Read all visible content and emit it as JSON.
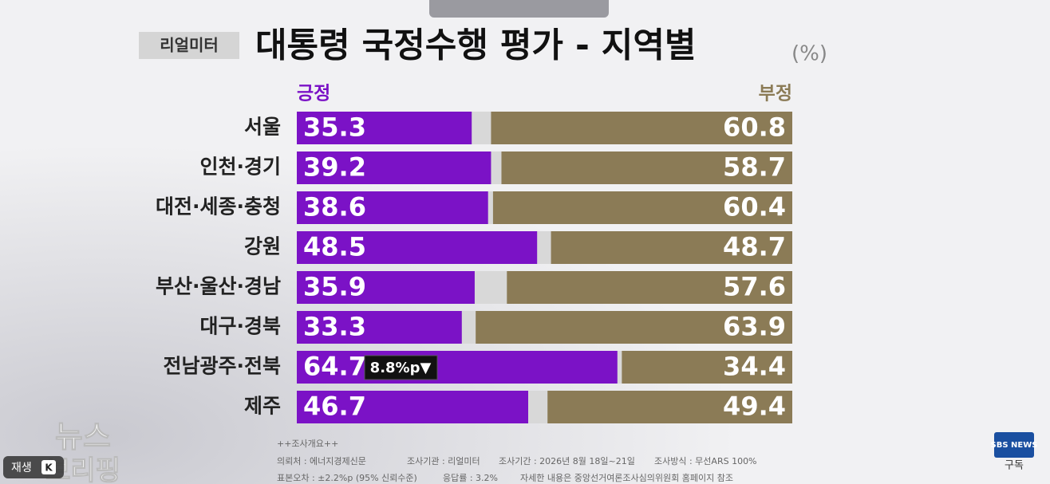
{
  "chart_data": {
    "type": "diverging_bar",
    "badge": "리얼미터",
    "title": "대통령 국정수행 평가 - 지역별",
    "unit": "(%)",
    "categories": [
      "서울",
      "인천·경기",
      "대전·세종·충청",
      "강원",
      "부산·울산·경남",
      "대구·경북",
      "전남광주·전북",
      "제주"
    ],
    "series": [
      {
        "name": "긍정",
        "color": "#7b12c6",
        "anchor": "left",
        "values": [
          35.3,
          39.2,
          38.6,
          48.5,
          35.9,
          33.3,
          64.7,
          46.7
        ]
      },
      {
        "name": "부정",
        "color": "#8b7b56",
        "anchor": "right",
        "values": [
          60.8,
          58.7,
          60.4,
          48.7,
          57.6,
          63.9,
          34.4,
          49.4
        ]
      }
    ],
    "track_color": "#d8d8d8",
    "xlim": [
      0,
      100
    ],
    "annotation": "8.8%p▼",
    "notes": {
      "heading": "++조사개요++",
      "client": "의뢰처 : 에너지경제신문",
      "agency": "조사기관 : 리얼미터",
      "period": "조사기간 : 2026년 8월 18일~21일",
      "method": "조사방식 : 무선ARS 100%",
      "error": "표본오차 : ±2.2%p (95% 신뢰수준)",
      "response": "응답률 : 3.2%",
      "detail": "자세한 내용은 중앙선거여론조사심의위원회 홈페이지 참조"
    }
  },
  "overlay": {
    "play": "재생",
    "key": "K",
    "channel": "SBS NEWS",
    "subscribe": "구독",
    "show_top": "뉴스",
    "show_bottom": "브리핑"
  }
}
